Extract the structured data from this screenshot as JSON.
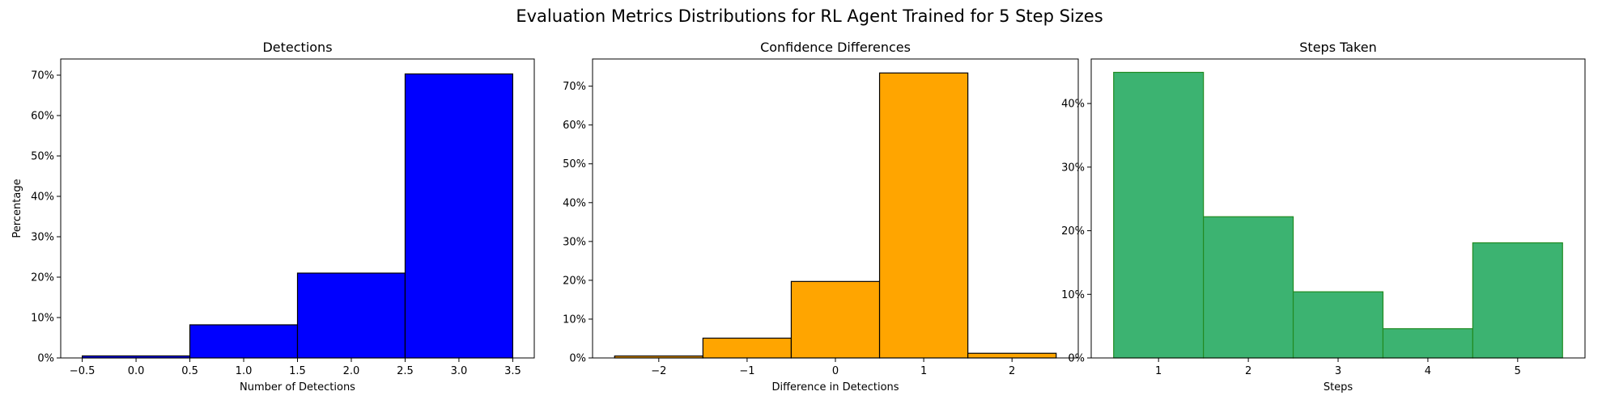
{
  "figure": {
    "title": "Evaluation Metrics Distributions for RL Agent Trained for 5 Step Sizes"
  },
  "chart_data": [
    {
      "type": "bar",
      "title": "Detections",
      "xlabel": "Number of Detections",
      "ylabel": "Percentage",
      "xlim": [
        -0.7,
        3.7
      ],
      "ylim": [
        0,
        74
      ],
      "xticks": [
        -0.5,
        0.0,
        0.5,
        1.0,
        1.5,
        2.0,
        2.5,
        3.0,
        3.5
      ],
      "xtick_labels": [
        "−0.5",
        "0.0",
        "0.5",
        "1.0",
        "1.5",
        "2.0",
        "2.5",
        "3.0",
        "3.5"
      ],
      "yticks": [
        0,
        10,
        20,
        30,
        40,
        50,
        60,
        70
      ],
      "ytick_labels": [
        "0%",
        "10%",
        "20%",
        "30%",
        "40%",
        "50%",
        "60%",
        "70%"
      ],
      "bin_edges": [
        -0.5,
        0.5,
        1.5,
        2.5,
        3.5
      ],
      "values": [
        0.5,
        8.2,
        21.0,
        70.3
      ],
      "fill": "#0000ff",
      "edge": "#000000"
    },
    {
      "type": "bar",
      "title": "Confidence Differences",
      "xlabel": "Difference in Detections",
      "ylabel": "",
      "xlim": [
        -2.75,
        2.75
      ],
      "ylim": [
        0,
        77
      ],
      "xticks": [
        -2,
        -1,
        0,
        1,
        2
      ],
      "xtick_labels": [
        "−2",
        "−1",
        "0",
        "1",
        "2"
      ],
      "yticks": [
        0,
        10,
        20,
        30,
        40,
        50,
        60,
        70
      ],
      "ytick_labels": [
        "0%",
        "10%",
        "20%",
        "30%",
        "40%",
        "50%",
        "60%",
        "70%"
      ],
      "bin_edges": [
        -2.5,
        -1.5,
        -0.5,
        0.5,
        1.5,
        2.5
      ],
      "values": [
        0.5,
        5.1,
        19.7,
        73.4,
        1.2
      ],
      "fill": "#ffa500",
      "edge": "#000000"
    },
    {
      "type": "bar",
      "title": "Steps Taken",
      "xlabel": "Steps",
      "ylabel": "",
      "xlim": [
        0.25,
        5.75
      ],
      "ylim": [
        0,
        47
      ],
      "xticks": [
        1,
        2,
        3,
        4,
        5
      ],
      "xtick_labels": [
        "1",
        "2",
        "3",
        "4",
        "5"
      ],
      "yticks": [
        0,
        10,
        20,
        30,
        40
      ],
      "ytick_labels": [
        "0%",
        "10%",
        "20%",
        "30%",
        "40%"
      ],
      "bin_edges": [
        0.5,
        1.5,
        2.5,
        3.5,
        4.5,
        5.5
      ],
      "values": [
        44.9,
        22.2,
        10.4,
        4.6,
        18.1
      ],
      "fill": "#3cb371",
      "edge": "#228b22"
    }
  ]
}
